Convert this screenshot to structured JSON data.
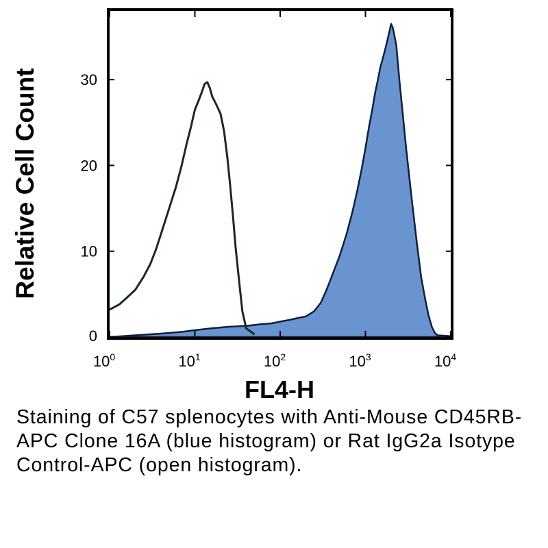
{
  "chart_data": {
    "type": "area",
    "xlabel": "FL4-H",
    "ylabel": "Relative Cell Count",
    "x_scale": "log",
    "xlim": [
      1,
      10000
    ],
    "ylim": [
      0,
      38
    ],
    "x_ticks": [
      {
        "value": 1,
        "base": "10",
        "exp": "0"
      },
      {
        "value": 10,
        "base": "10",
        "exp": "1"
      },
      {
        "value": 100,
        "base": "10",
        "exp": "2"
      },
      {
        "value": 1000,
        "base": "10",
        "exp": "3"
      },
      {
        "value": 10000,
        "base": "10",
        "exp": "4"
      }
    ],
    "y_ticks": [
      0,
      10,
      20,
      30
    ],
    "grid": false,
    "series": [
      {
        "kind": "open",
        "stroke": "#1a2a1a",
        "x": [
          1,
          1.3,
          1.6,
          2,
          2.5,
          3,
          3.5,
          4,
          5,
          6,
          7,
          8,
          9,
          10,
          11,
          12,
          13,
          14,
          15,
          16,
          17,
          18,
          20,
          22,
          24,
          26,
          28,
          30,
          33,
          36,
          40,
          50
        ],
        "y": [
          3.2,
          3.8,
          4.6,
          5.5,
          7,
          8.5,
          10.2,
          12,
          15,
          17.5,
          20,
          22.5,
          24.5,
          26.5,
          27.5,
          28.5,
          29.5,
          29.7,
          29,
          28,
          27.5,
          27,
          26,
          24,
          21,
          17.5,
          14,
          10.5,
          6.5,
          3,
          1,
          0.3
        ]
      },
      {
        "kind": "filled",
        "fill": "#6a94cf",
        "stroke": "#0d1f3c",
        "x": [
          1,
          2,
          4,
          7,
          10,
          15,
          25,
          40,
          60,
          80,
          100,
          130,
          160,
          200,
          250,
          300,
          350,
          400,
          500,
          600,
          700,
          800,
          900,
          1000,
          1100,
          1200,
          1300,
          1400,
          1500,
          1600,
          1700,
          1800,
          1900,
          2000,
          2100,
          2200,
          2300,
          2500,
          2800,
          3000,
          3500,
          4000,
          4500,
          5000,
          5500,
          6000,
          6500,
          7000,
          10000
        ],
        "y": [
          0,
          0.2,
          0.4,
          0.6,
          0.8,
          1,
          1.2,
          1.3,
          1.5,
          1.6,
          1.8,
          2,
          2.2,
          2.4,
          3,
          4,
          5.5,
          7,
          9.5,
          12,
          14.5,
          17,
          19.5,
          22,
          24.5,
          26.5,
          28.5,
          30,
          31.5,
          32.5,
          33.5,
          34.5,
          35.5,
          36.5,
          36,
          35,
          34,
          30,
          25,
          22,
          16,
          11,
          7,
          4.5,
          2.5,
          1.2,
          0.5,
          0.2,
          0.1
        ]
      }
    ]
  },
  "caption": "Staining of C57 splenocytes with Anti-Mouse CD45RB-APC Clone 16A (blue histogram) or Rat IgG2a Isotype Control-APC (open histogram)."
}
